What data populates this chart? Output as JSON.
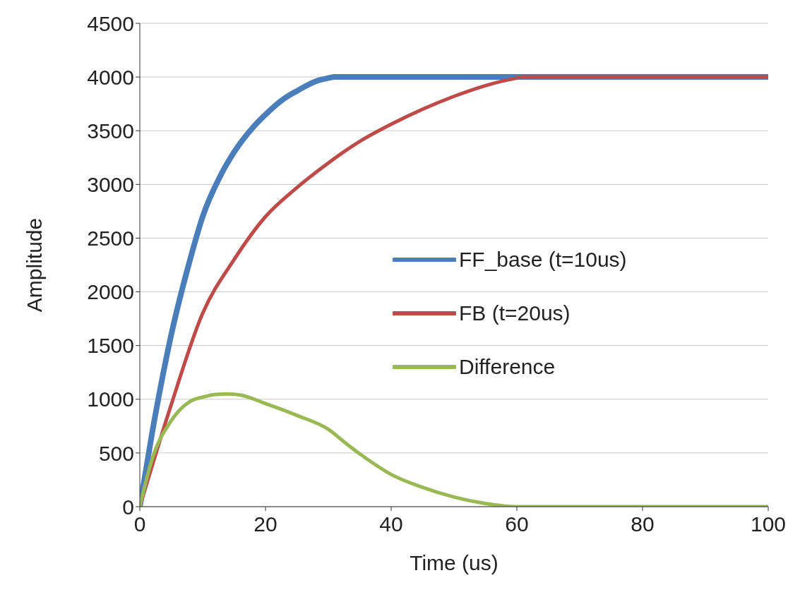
{
  "chart_data": {
    "type": "line",
    "xlabel": "Time (us)",
    "ylabel": "Amplitude",
    "xlim": [
      0,
      100
    ],
    "xticks": [
      0,
      20,
      40,
      60,
      80,
      100
    ],
    "ylim": [
      0,
      4500
    ],
    "yticks": [
      0,
      500,
      1000,
      1500,
      2000,
      2500,
      3000,
      3500,
      4000,
      4500
    ],
    "grid": "y",
    "legend": "right",
    "marker": "none",
    "line_style": "solid",
    "series": [
      {
        "name": "FF_base (t=10us)",
        "color": "#4a7ebb",
        "x": [
          0,
          2,
          5,
          8,
          10,
          13,
          15,
          18,
          20,
          23,
          25,
          28,
          30,
          31,
          100
        ],
        "values": [
          0,
          700,
          1600,
          2300,
          2700,
          3100,
          3300,
          3530,
          3650,
          3800,
          3870,
          3960,
          3990,
          4000,
          4000
        ]
      },
      {
        "name": "FB (t=20us)",
        "color": "#be4b48",
        "x": [
          0,
          5,
          10,
          15,
          20,
          25,
          30,
          35,
          40,
          45,
          50,
          55,
          60,
          61,
          100
        ],
        "values": [
          0,
          950,
          1800,
          2300,
          2700,
          2970,
          3200,
          3400,
          3560,
          3700,
          3820,
          3920,
          3990,
          4000,
          4000
        ]
      },
      {
        "name": "Difference",
        "color": "#98b954",
        "x": [
          0,
          2,
          5,
          8,
          10,
          12,
          14,
          16,
          20,
          25,
          30,
          33,
          36,
          40,
          45,
          50,
          55,
          60,
          100
        ],
        "values": [
          0,
          450,
          800,
          980,
          1020,
          1045,
          1050,
          1040,
          960,
          850,
          720,
          580,
          450,
          300,
          180,
          90,
          30,
          0,
          0
        ]
      }
    ]
  }
}
